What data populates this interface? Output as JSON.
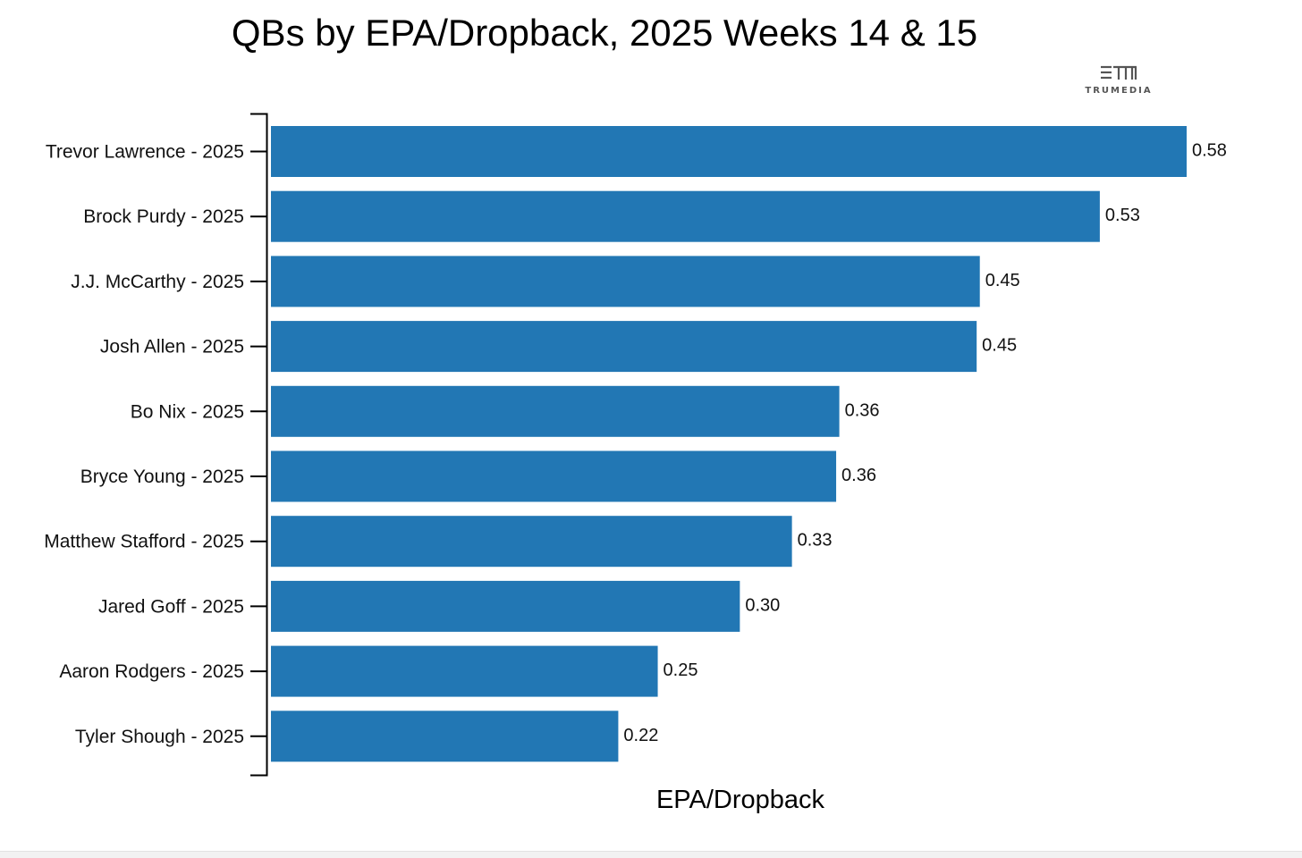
{
  "logo": {
    "text": "TRUMEDIA",
    "color": "#555555"
  },
  "chart_data": {
    "type": "bar",
    "orientation": "horizontal",
    "title": "QBs by EPA/Dropback, 2025 Weeks 14 & 15",
    "xlabel": "EPA/Dropback",
    "ylabel": "",
    "categories": [
      "Trevor Lawrence - 2025",
      "Brock Purdy - 2025",
      "J.J. McCarthy - 2025",
      "Josh Allen - 2025",
      "Bo Nix - 2025",
      "Bryce Young - 2025",
      "Matthew Stafford - 2025",
      "Jared Goff - 2025",
      "Aaron Rodgers - 2025",
      "Tyler Shough - 2025"
    ],
    "values": [
      0.58,
      0.525,
      0.449,
      0.447,
      0.36,
      0.358,
      0.33,
      0.297,
      0.245,
      0.22
    ],
    "value_labels": [
      "0.58",
      "0.53",
      "0.45",
      "0.45",
      "0.36",
      "0.36",
      "0.33",
      "0.30",
      "0.25",
      "0.22"
    ],
    "xlim": [
      0,
      0.58
    ],
    "grid": false,
    "legend": "none",
    "bar_color": "#2277b4"
  }
}
